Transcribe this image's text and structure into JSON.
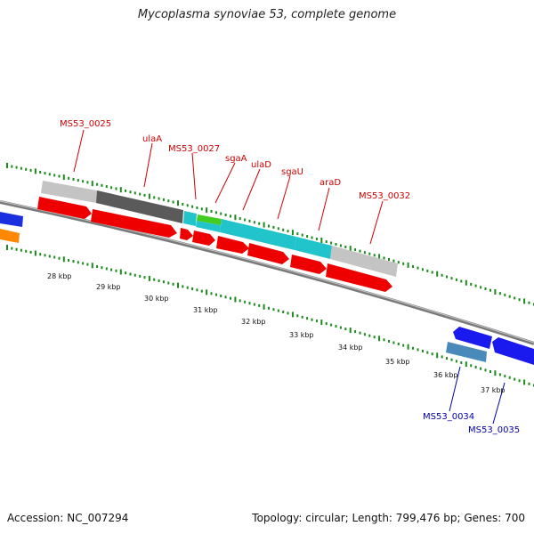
{
  "title": "Mycoplasma synoviae 53, complete genome",
  "footer": {
    "accession": "Accession: NC_007294",
    "summary": "Topology: circular; Length: 799,476 bp; Genes: 700"
  },
  "kbp_labels": [
    "28 kbp",
    "29 kbp",
    "30 kbp",
    "31 kbp",
    "32 kbp",
    "33 kbp",
    "34 kbp",
    "35 kbp",
    "36 kbp",
    "37 kbp"
  ],
  "gene_labels": {
    "top": [
      "MS53_0025",
      "ulaA",
      "MS53_0027",
      "sgaA",
      "ulaD",
      "sgaU",
      "araD",
      "MS53_0032"
    ],
    "bottom": [
      "MS53_0034",
      "MS53_0035"
    ]
  },
  "colors": {
    "cds_forward": "#ee0000",
    "cds_reverse": "#0000dd",
    "label_top": "#cc0000",
    "label_bottom": "#0000aa",
    "ticks": "#1a8a1a",
    "backbone": "#808080",
    "gray_light": "#c0c0c0",
    "gray_dark": "#555555",
    "cyan": "#22c4cc",
    "green": "#44cc22",
    "steel": "#4a8abb",
    "orange": "#ff8800"
  }
}
